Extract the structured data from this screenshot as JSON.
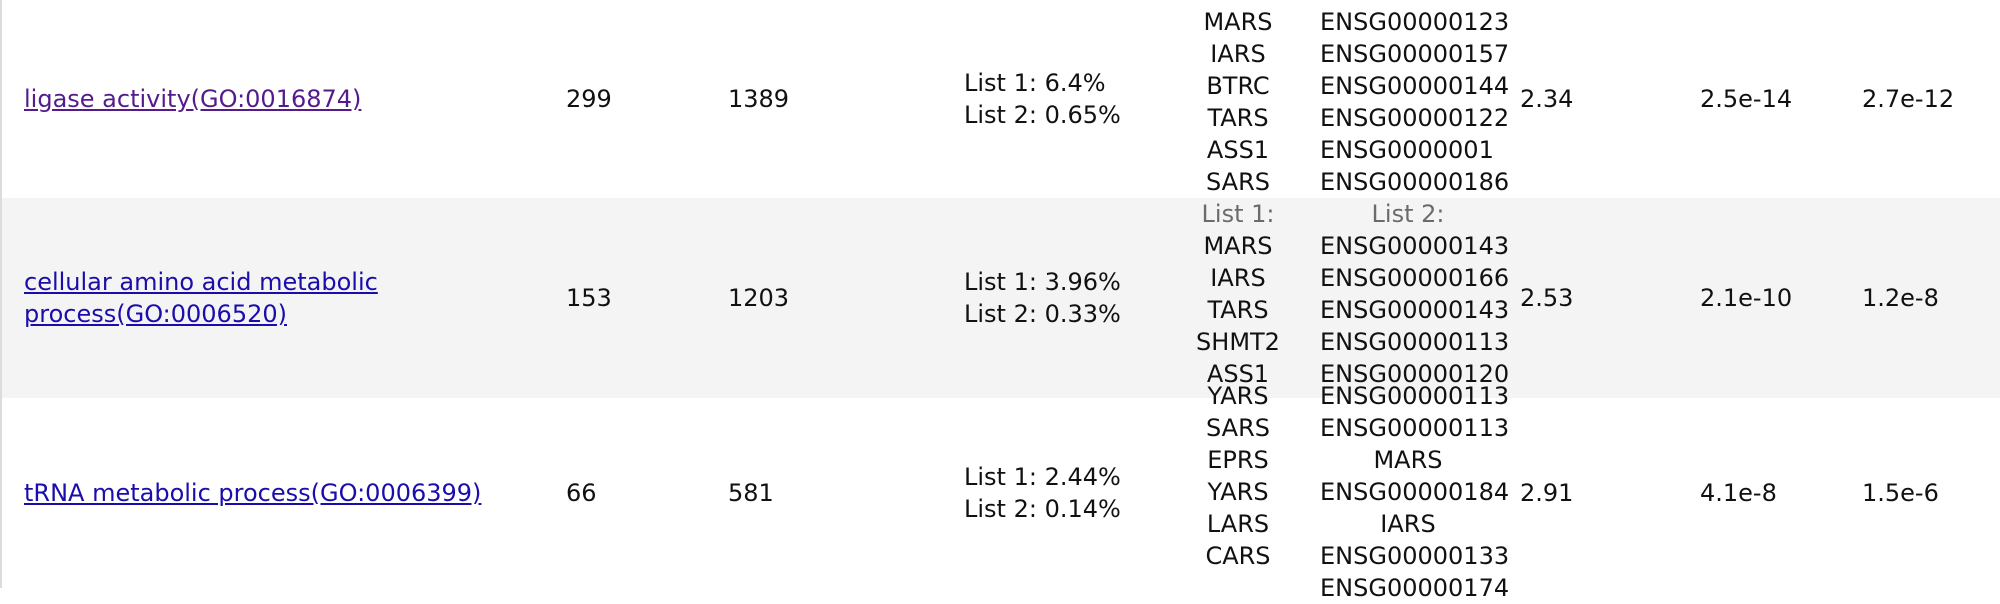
{
  "rows": [
    {
      "term": "ligase activity(GO:0016874)",
      "count": "299",
      "total": "1389",
      "pct1": "List 1: 6.4%",
      "pct2": "List 2: 0.65%",
      "genes_a": [
        "MARS",
        "IARS",
        "BTRC",
        "TARS",
        "ASS1",
        "SARS"
      ],
      "genes_b": [
        "ENSG00000123",
        "ENSG00000157",
        "ENSG00000144",
        "ENSG00000122",
        "ENSG0000001",
        "ENSG00000186"
      ],
      "fold": "2.34",
      "pvalue": "2.5e-14",
      "fdr": "2.7e-12"
    },
    {
      "term": "cellular amino acid metabolic process(GO:0006520)",
      "count": "153",
      "total": "1203",
      "pct1": "List 1: 3.96%",
      "pct2": "List 2: 0.33%",
      "list1_header": "List 1:",
      "list2_header": "List 2:",
      "genes_a": [
        "MARS",
        "IARS",
        "TARS",
        "SHMT2",
        "ASS1"
      ],
      "genes_b": [
        "ENSG00000143",
        "ENSG00000166",
        "ENSG00000143",
        "ENSG00000113",
        "ENSG00000120"
      ],
      "fold": "2.53",
      "pvalue": "2.1e-10",
      "fdr": "1.2e-8"
    },
    {
      "term": "tRNA metabolic process(GO:0006399)",
      "count": "66",
      "total": "581",
      "pct1": "List 1: 2.44%",
      "pct2": "List 2: 0.14%",
      "genes_a": [
        "YARS",
        "SARS",
        "EPRS",
        "YARS",
        "LARS",
        "CARS"
      ],
      "genes_b": [
        "ENSG00000113",
        "ENSG00000113",
        "MARS",
        "ENSG00000184",
        "IARS",
        "ENSG00000133",
        "ENSG00000174"
      ],
      "fold": "2.91",
      "pvalue": "4.1e-8",
      "fdr": "1.5e-6"
    }
  ]
}
